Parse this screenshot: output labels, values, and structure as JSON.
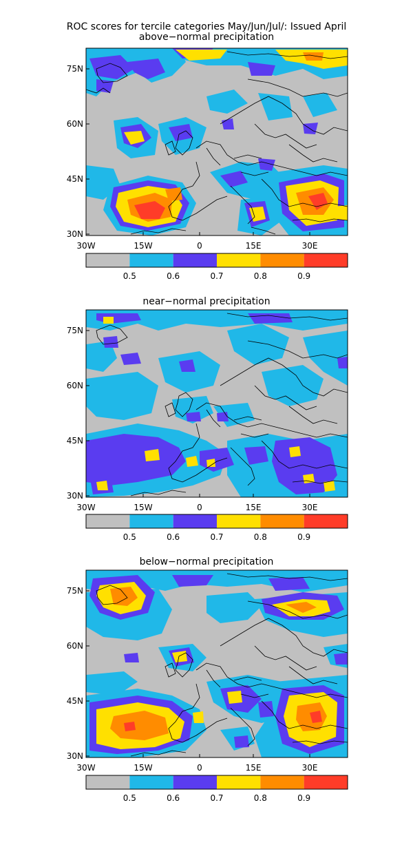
{
  "title": "ROC scores for tercile categories May/Jun/Jul/: Issued April",
  "x_ticks": [
    "30W",
    "15W",
    "0",
    "15E",
    "30E"
  ],
  "y_ticks": [
    "75N",
    "60N",
    "45N",
    "30N"
  ],
  "colorbar_ticks": [
    "0.5",
    "0.6",
    "0.7",
    "0.8",
    "0.9"
  ],
  "colorbar_colors": [
    "#c0c0c0",
    "#20b8e8",
    "#5a3cf0",
    "#ffe000",
    "#ff8c00",
    "#ff3c28"
  ],
  "panels": [
    {
      "subtitle": "above−normal precipitation"
    },
    {
      "subtitle": "near−normal precipitation"
    },
    {
      "subtitle": "below−normal precipitation"
    }
  ]
}
